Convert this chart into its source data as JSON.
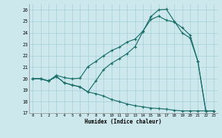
{
  "bg_color": "#cce8ec",
  "grid_color": "#a0cdd4",
  "line_color": "#1a6e6a",
  "xlabel": "Humidex (Indice chaleur)",
  "xlim": [
    -0.5,
    23.5
  ],
  "ylim": [
    17,
    26.5
  ],
  "xticks": [
    0,
    1,
    2,
    3,
    4,
    5,
    6,
    7,
    8,
    9,
    10,
    11,
    12,
    13,
    14,
    15,
    16,
    17,
    18,
    19,
    20,
    21,
    22,
    23
  ],
  "yticks": [
    17,
    18,
    19,
    20,
    21,
    22,
    23,
    24,
    25,
    26
  ],
  "curve1_x": [
    0,
    1,
    2,
    3,
    4,
    5,
    6,
    7,
    8,
    9,
    10,
    11,
    12,
    13,
    14,
    15,
    16,
    17,
    18,
    19,
    20,
    21,
    22,
    23
  ],
  "curve1_y": [
    20.0,
    20.0,
    19.8,
    20.2,
    19.65,
    19.45,
    19.3,
    18.85,
    19.8,
    20.8,
    21.35,
    21.75,
    22.2,
    22.8,
    24.1,
    25.4,
    26.0,
    26.05,
    25.0,
    24.0,
    23.55,
    21.5,
    17.2,
    17.2
  ],
  "curve2_x": [
    0,
    1,
    2,
    3,
    4,
    5,
    6,
    7,
    8,
    9,
    10,
    11,
    12,
    13,
    14,
    15,
    16,
    17,
    18,
    19,
    20,
    21,
    22,
    23
  ],
  "curve2_y": [
    20.0,
    20.0,
    19.8,
    20.3,
    20.1,
    20.0,
    20.05,
    21.05,
    21.5,
    22.0,
    22.45,
    22.75,
    23.2,
    23.45,
    24.15,
    25.15,
    25.45,
    25.1,
    24.95,
    24.45,
    23.8,
    21.5,
    17.2,
    17.2
  ],
  "curve3_x": [
    0,
    1,
    2,
    3,
    4,
    5,
    6,
    7,
    8,
    9,
    10,
    11,
    12,
    13,
    14,
    15,
    16,
    17,
    18,
    19,
    20,
    21,
    22,
    23
  ],
  "curve3_y": [
    20.0,
    20.0,
    19.8,
    20.2,
    19.65,
    19.45,
    19.3,
    18.85,
    18.7,
    18.5,
    18.2,
    18.0,
    17.8,
    17.65,
    17.55,
    17.45,
    17.4,
    17.35,
    17.25,
    17.2,
    17.2,
    17.2,
    17.2,
    17.2
  ]
}
